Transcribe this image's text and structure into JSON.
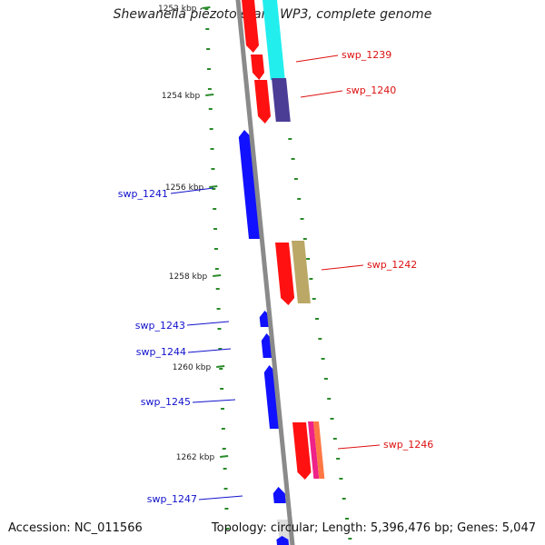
{
  "title": "Shewanella piezotolerans WP3, complete genome",
  "accession": "Accession: NC_011566",
  "summary": "Topology: circular; Length: 5,396,476 bp; Genes: 5,047",
  "colors": {
    "backbone": "#8a8a8a",
    "tick": "#2a8a2a",
    "forward_label": "#dd1111",
    "reverse_label": "#1111cc"
  },
  "scale_ticks": [
    {
      "label": "1252 kbp"
    },
    {
      "label": "1254 kbp"
    },
    {
      "label": "1256 kbp"
    },
    {
      "label": "1258 kbp"
    },
    {
      "label": "1260 kbp"
    },
    {
      "label": "1262 kbp"
    }
  ],
  "genes": [
    {
      "label": "swp_1239",
      "strand": "forward"
    },
    {
      "label": "swp_1240",
      "strand": "forward"
    },
    {
      "label": "swp_1241",
      "strand": "reverse"
    },
    {
      "label": "swp_1242",
      "strand": "forward"
    },
    {
      "label": "swp_1243",
      "strand": "reverse"
    },
    {
      "label": "swp_1244",
      "strand": "reverse"
    },
    {
      "label": "swp_1245",
      "strand": "reverse"
    },
    {
      "label": "swp_1246",
      "strand": "forward"
    },
    {
      "label": "swp_1247",
      "strand": "reverse"
    }
  ]
}
